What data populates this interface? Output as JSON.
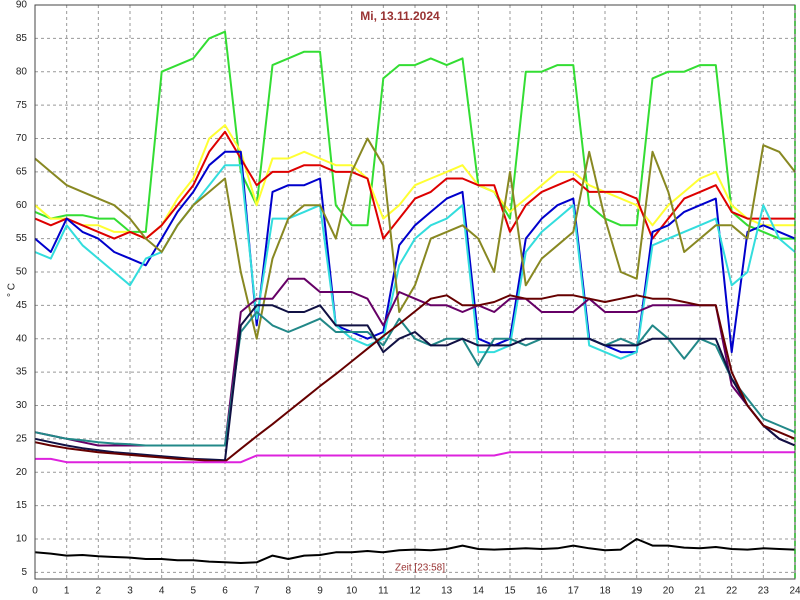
{
  "chart_data": {
    "type": "line",
    "title": "Mi, 13.11.2024",
    "y_label": "° C",
    "x_label": "Zeit [23:58]",
    "x": [
      0,
      0.5,
      1,
      1.5,
      2,
      2.5,
      3,
      3.5,
      4,
      4.5,
      5,
      5.5,
      6,
      6.5,
      7,
      7.5,
      8,
      8.5,
      9,
      9.5,
      10,
      10.5,
      11,
      11.5,
      12,
      12.5,
      13,
      13.5,
      14,
      14.5,
      15,
      15.5,
      16,
      16.5,
      17,
      17.5,
      18,
      18.5,
      19,
      19.5,
      20,
      20.5,
      21,
      21.5,
      22,
      22.5,
      23,
      23.5,
      24
    ],
    "xlim": [
      0,
      24
    ],
    "xticks": [
      0,
      1,
      2,
      3,
      4,
      5,
      6,
      7,
      8,
      9,
      10,
      11,
      12,
      13,
      14,
      15,
      16,
      17,
      18,
      19,
      20,
      21,
      22,
      23,
      24
    ],
    "ylim": [
      4,
      90
    ],
    "yticks": [
      5,
      10,
      15,
      20,
      25,
      30,
      35,
      40,
      45,
      50,
      55,
      60,
      65,
      70,
      75,
      80,
      85,
      90
    ],
    "grid": true,
    "series": [
      {
        "color": "#33dd33",
        "values": [
          59,
          58,
          58.5,
          58.5,
          58,
          58,
          56,
          56,
          80,
          81,
          82,
          85,
          86,
          65,
          60,
          81,
          82,
          83,
          83,
          60,
          57,
          57,
          79,
          81,
          81,
          82,
          81,
          82,
          63,
          62,
          58,
          80,
          80,
          81,
          81,
          60,
          58,
          57,
          57,
          79,
          80,
          80,
          81,
          81,
          59,
          57,
          56,
          55,
          55
        ]
      },
      {
        "color": "#ffff33",
        "values": [
          60,
          58,
          58,
          57,
          57,
          56,
          56,
          55,
          57,
          61,
          64,
          70,
          72,
          68,
          60,
          67,
          67,
          68,
          67,
          66,
          66,
          64,
          58,
          60,
          63,
          64,
          65,
          66,
          63,
          62,
          59,
          61,
          63,
          65,
          65,
          63,
          62,
          61,
          60,
          57,
          60,
          62,
          64,
          65,
          60,
          58,
          57,
          57,
          57
        ]
      },
      {
        "color": "#dd0000",
        "values": [
          58,
          57,
          58,
          57,
          56,
          55,
          56,
          55,
          57,
          60,
          63,
          68,
          71,
          67,
          63,
          65,
          65,
          66,
          66,
          65,
          65,
          64,
          55,
          58,
          61,
          62,
          64,
          64,
          63,
          63,
          56,
          60,
          62,
          63,
          64,
          62,
          62,
          62,
          61,
          55,
          58,
          61,
          62,
          63,
          59,
          58,
          58,
          58,
          58
        ]
      },
      {
        "color": "#0000cc",
        "values": [
          55,
          53,
          58,
          56,
          55,
          53,
          52,
          51,
          55,
          59,
          62,
          66,
          68,
          68,
          42,
          62,
          63,
          63,
          64,
          42,
          41,
          40,
          41,
          54,
          57,
          59,
          61,
          62,
          40,
          39,
          40,
          55,
          58,
          60,
          61,
          40,
          39,
          38,
          38,
          56,
          57,
          59,
          60,
          61,
          38,
          56,
          57,
          56,
          55
        ]
      },
      {
        "color": "#33dddd",
        "values": [
          53,
          52,
          57,
          54,
          52,
          50,
          48,
          52,
          53,
          57,
          60,
          63,
          66,
          66,
          43,
          58,
          58,
          59,
          60,
          42,
          40,
          39,
          40,
          51,
          55,
          57,
          58,
          60,
          38,
          38,
          39,
          53,
          56,
          58,
          60,
          39,
          38,
          37,
          38,
          54,
          55,
          56,
          57,
          58,
          48,
          50,
          60,
          55,
          53
        ]
      },
      {
        "color": "#888822",
        "values": [
          67,
          65,
          63,
          62,
          61,
          60,
          58,
          55,
          53,
          57,
          60,
          62,
          64,
          50,
          40,
          52,
          58,
          60,
          60,
          55,
          65,
          70,
          66,
          44,
          48,
          55,
          56,
          57,
          55,
          50,
          65,
          48,
          52,
          54,
          56,
          68,
          58,
          50,
          49,
          68,
          62,
          53,
          55,
          57,
          57,
          55,
          69,
          68,
          65
        ]
      },
      {
        "color": "#660066",
        "values": [
          26,
          25.5,
          25,
          24.5,
          24,
          24,
          24,
          24,
          24,
          24,
          24,
          24,
          24,
          44,
          46,
          46,
          49,
          49,
          47,
          47,
          47,
          46,
          42,
          47,
          46,
          45,
          45,
          44,
          45,
          44,
          46,
          46,
          44,
          44,
          44,
          46,
          44,
          44,
          44,
          45,
          45,
          45,
          45,
          45,
          33,
          30,
          27,
          25,
          24
        ]
      },
      {
        "color": "#228888",
        "values": [
          26,
          25.5,
          25,
          24.8,
          24.5,
          24.3,
          24.2,
          24,
          24,
          24,
          24,
          24,
          24,
          41,
          44,
          42,
          41,
          42,
          43,
          41,
          41,
          41,
          39,
          43,
          40,
          39,
          40,
          40,
          36,
          40,
          40,
          39,
          40,
          40,
          40,
          40,
          39,
          40,
          39,
          42,
          40,
          37,
          40,
          39,
          34,
          31,
          28,
          27,
          26
        ]
      },
      {
        "color": "#111144",
        "values": [
          25,
          24.5,
          24,
          23.6,
          23.3,
          23,
          22.8,
          22.6,
          22.4,
          22.2,
          22,
          21.9,
          21.8,
          42,
          45,
          45,
          44,
          44,
          45,
          42,
          42,
          42,
          38,
          40,
          41,
          39,
          39,
          40,
          39,
          39,
          39,
          40,
          40,
          40,
          40,
          40,
          39,
          39,
          39,
          40,
          40,
          40,
          40,
          40,
          34,
          30,
          27,
          25,
          24
        ]
      },
      {
        "color": "#660000",
        "values": [
          24.5,
          24,
          23.6,
          23.3,
          23,
          22.8,
          22.6,
          22.4,
          22.2,
          22,
          21.9,
          21.7,
          21.6,
          23.5,
          25.4,
          27.2,
          29.1,
          31,
          32.9,
          34.7,
          36.6,
          38.5,
          40.4,
          42.2,
          44.1,
          46,
          46.5,
          45,
          45,
          45.5,
          46.5,
          46,
          46,
          46.5,
          46.5,
          46,
          45.5,
          46,
          46.5,
          46,
          46,
          45.5,
          45,
          45,
          35,
          30,
          27,
          26,
          25
        ]
      },
      {
        "color": "#dd22dd",
        "values": [
          22,
          22,
          21.5,
          21.5,
          21.5,
          21.5,
          21.5,
          21.5,
          21.5,
          21.5,
          21.5,
          21.5,
          21.5,
          21.5,
          22.5,
          22.5,
          22.5,
          22.5,
          22.5,
          22.5,
          22.5,
          22.5,
          22.5,
          22.5,
          22.5,
          22.5,
          22.5,
          22.5,
          22.5,
          22.5,
          23,
          23,
          23,
          23,
          23,
          23,
          23,
          23,
          23,
          23,
          23,
          23,
          23,
          23,
          23,
          23,
          23,
          23,
          23
        ]
      },
      {
        "color": "#000000",
        "values": [
          8,
          7.8,
          7.5,
          7.6,
          7.4,
          7.3,
          7.2,
          7,
          7,
          6.8,
          6.8,
          6.6,
          6.5,
          6.4,
          6.5,
          7.5,
          7,
          7.5,
          7.6,
          8,
          8,
          8.2,
          8,
          8.3,
          8.4,
          8.3,
          8.5,
          9,
          8.5,
          8.4,
          8.5,
          8.6,
          8.5,
          8.6,
          9,
          8.6,
          8.3,
          8.4,
          10,
          9,
          9,
          8.7,
          8.6,
          8.8,
          8.5,
          8.4,
          8.6,
          8.5,
          8.4
        ]
      }
    ]
  }
}
